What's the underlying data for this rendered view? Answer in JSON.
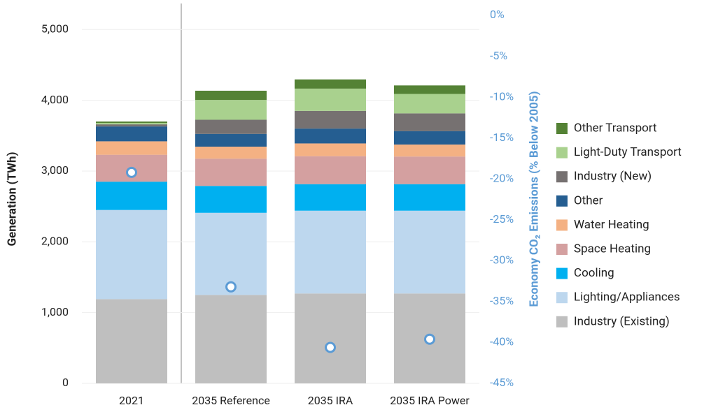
{
  "chart_data": {
    "type": "bar",
    "stacked": true,
    "categories": [
      "2021",
      "2035 Reference",
      "2035 IRA",
      "2035 IRA Power"
    ],
    "ylabel": "Generation (TWh)",
    "y2label": "Economy CO₂ Emissions (% Below 2005)",
    "ylim": [
      0,
      5200
    ],
    "yticks": [
      0,
      {
        "value": 1000,
        "label": "1,000"
      },
      {
        "value": 2000,
        "label": "2,000"
      },
      {
        "value": 3000,
        "label": "3,000"
      },
      {
        "value": 4000,
        "label": "4,000"
      },
      {
        "value": 5000,
        "label": "5,000"
      }
    ],
    "y2lim": [
      -45,
      0
    ],
    "y2ticks": [
      {
        "value": -45,
        "label": "-45%"
      },
      {
        "value": -40,
        "label": "-40%"
      },
      {
        "value": -35,
        "label": "-35%"
      },
      {
        "value": -30,
        "label": "-30%"
      },
      {
        "value": -25,
        "label": "-25%"
      },
      {
        "value": -20,
        "label": "-20%"
      },
      {
        "value": -15,
        "label": "-15%"
      },
      {
        "value": -10,
        "label": "-10%"
      },
      {
        "value": -5,
        "label": "-5%"
      },
      {
        "value": 0,
        "label": "0%"
      }
    ],
    "grid": true,
    "legend": "right",
    "series": [
      {
        "name": "Industry (Existing)",
        "color": "#bfbfbf",
        "values": [
          1190,
          1250,
          1270,
          1270
        ]
      },
      {
        "name": "Lighting/Appliances",
        "color": "#bdd7ee",
        "values": [
          1260,
          1160,
          1170,
          1170
        ]
      },
      {
        "name": "Cooling",
        "color": "#00b0f0",
        "values": [
          400,
          380,
          375,
          375
        ]
      },
      {
        "name": "Space Heating",
        "color": "#d4a0a0",
        "values": [
          380,
          385,
          395,
          390
        ]
      },
      {
        "name": "Water Heating",
        "color": "#f4b183",
        "values": [
          190,
          170,
          180,
          170
        ]
      },
      {
        "name": "Other",
        "color": "#255e91",
        "values": [
          210,
          180,
          210,
          190
        ]
      },
      {
        "name": "Industry (New)",
        "color": "#767171",
        "values": [
          30,
          200,
          250,
          250
        ]
      },
      {
        "name": "Light-Duty Transport",
        "color": "#a9d18e",
        "values": [
          20,
          280,
          315,
          275
        ]
      },
      {
        "name": "Other Transport",
        "color": "#548235",
        "values": [
          20,
          130,
          130,
          120
        ]
      },
      {
        "type": "scatter",
        "axis": "y2",
        "color": "#5b9bd5",
        "values": [
          -19.2,
          -33.2,
          -40.6,
          -39.6
        ]
      }
    ]
  }
}
